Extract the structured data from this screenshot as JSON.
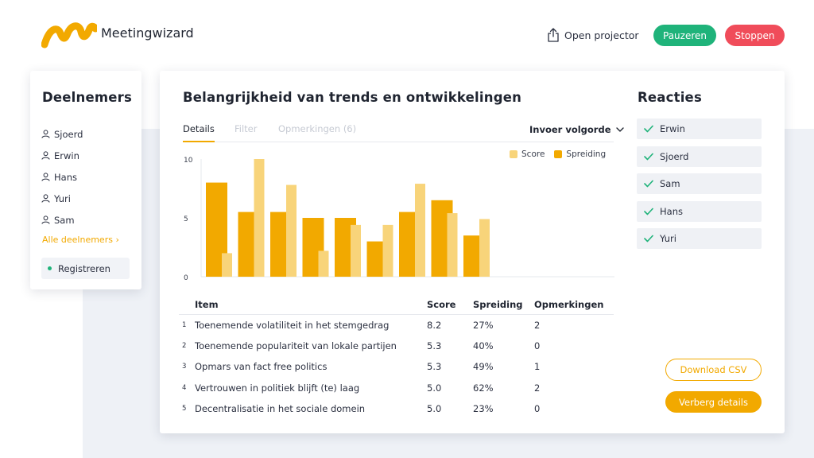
{
  "header": {
    "brand": "Meetingwizard",
    "open_projector": "Open projector",
    "pause_label": "Pauzeren",
    "stop_label": "Stoppen"
  },
  "participants": {
    "title": "Deelnemers",
    "names": [
      "Sjoerd",
      "Erwin",
      "Hans",
      "Yuri",
      "Sam"
    ],
    "all_link": "Alle deelnemers ›",
    "register_label": "Registreren"
  },
  "main": {
    "title": "Belangrijkheid van trends en ontwikkelingen",
    "tabs": [
      {
        "label": "Details",
        "active": true
      },
      {
        "label": "Filter",
        "active": false
      },
      {
        "label": "Opmerkingen (6)",
        "active": false
      }
    ],
    "order_select": "Invoer volgorde"
  },
  "chart_data": {
    "type": "bar",
    "yticks": [
      "10",
      "5",
      "0"
    ],
    "ylim": [
      0,
      10
    ],
    "series": [
      {
        "name": "Score",
        "color": "#f8d47a",
        "values": [
          2.0,
          10.0,
          7.8,
          2.2,
          4.4,
          4.4,
          7.9,
          5.4,
          4.9
        ]
      },
      {
        "name": "Spreiding",
        "color": "#f2a900",
        "values": [
          8.0,
          5.5,
          5.5,
          5.0,
          5.0,
          3.0,
          5.5,
          6.5,
          3.5
        ]
      }
    ],
    "categories": 9
  },
  "table": {
    "headers": [
      "Item",
      "Score",
      "Spreiding",
      "Opmerkingen"
    ],
    "rows": [
      {
        "idx": "1",
        "item": "Toenemende volatiliteit in het stemgedrag",
        "score": "8.2",
        "spread": "27%",
        "comments": "2"
      },
      {
        "idx": "2",
        "item": "Toenemende populariteit van lokale partijen",
        "score": "5.3",
        "spread": "40%",
        "comments": "0"
      },
      {
        "idx": "3",
        "item": "Opmars van fact free politics",
        "score": "5.3",
        "spread": "49%",
        "comments": "1"
      },
      {
        "idx": "4",
        "item": "Vertrouwen in politiek blijft (te) laag",
        "score": "5.0",
        "spread": "62%",
        "comments": "2"
      },
      {
        "idx": "5",
        "item": "Decentralisatie in het sociale domein",
        "score": "5.0",
        "spread": "23%",
        "comments": "0"
      }
    ]
  },
  "reactions": {
    "title": "Reacties",
    "names": [
      "Erwin",
      "Sjoerd",
      "Sam",
      "Hans",
      "Yuri"
    ]
  },
  "actions": {
    "download_csv": "Download CSV",
    "hide_details": "Verberg details"
  },
  "colors": {
    "accent": "#f2a900",
    "accent_light": "#f8d47a",
    "green": "#1fb37a",
    "red": "#f04c5a"
  }
}
